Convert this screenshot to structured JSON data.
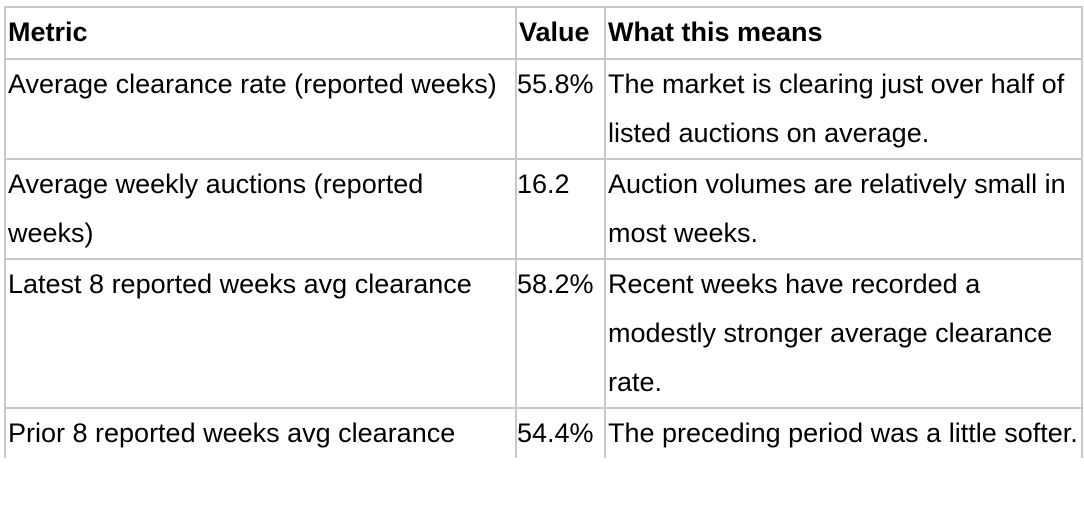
{
  "table": {
    "headers": [
      "Metric",
      "Value",
      "What this means"
    ],
    "rows": [
      {
        "metric": "Average clearance rate (reported weeks)",
        "value": "55.8%",
        "meaning": "The market is clearing just over half of listed auctions on average."
      },
      {
        "metric": "Average weekly auctions (reported weeks)",
        "value": "16.2",
        "meaning": "Auction volumes are relatively small in most weeks."
      },
      {
        "metric": "Latest 8 reported weeks avg clearance",
        "value": "58.2%",
        "meaning": "Recent weeks have recorded a modestly stronger average clearance rate."
      },
      {
        "metric": "Prior 8 reported weeks avg clearance",
        "value": "54.4%",
        "meaning": "The preceding period was a little softer."
      }
    ]
  }
}
